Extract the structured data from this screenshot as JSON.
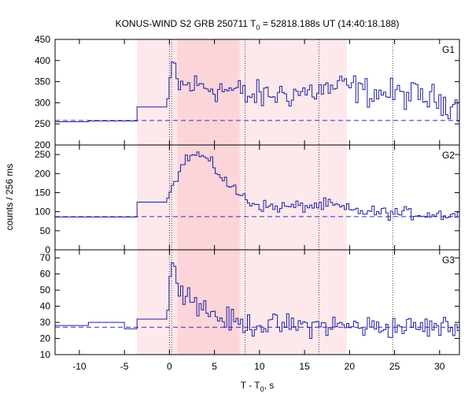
{
  "chart_data": {
    "type": "line",
    "title": {
      "prefix": "KONUS-WIND S2 GRB 250711 T",
      "sub": "0",
      "suffix": " = 52818.188s UT (14:40:18.188)"
    },
    "xlabel": {
      "prefix": "T - T",
      "sub": "0",
      "suffix": ", s"
    },
    "ylabel": "counts / 256 ms",
    "xlim": [
      -12.7,
      32.2
    ],
    "x_ticks": [
      -10,
      -5,
      0,
      5,
      10,
      15,
      20,
      25,
      30
    ],
    "shaded_intervals": [
      {
        "from": -3.6,
        "to": 19.7,
        "color": "#fde9ec"
      },
      {
        "from": 0.9,
        "to": 7.8,
        "color": "#fcd5da"
      }
    ],
    "vertical_markers": [
      0.0,
      0.25,
      8.4,
      16.6,
      24.8
    ],
    "colors": {
      "data": "#1e1ea0",
      "background": "#2b2bcf",
      "marker": "#444444"
    },
    "panels": [
      {
        "name": "G1",
        "ylim": [
          200,
          450
        ],
        "y_ticks": [
          200,
          250,
          300,
          350,
          400,
          450
        ],
        "background_level": 258,
        "noise": 17,
        "steps": [
          [
            -12.7,
            255
          ],
          [
            -9.0,
            257
          ],
          [
            -3.6,
            290
          ]
        ],
        "profile": [
          [
            -0.3,
            290
          ],
          [
            0.0,
            335
          ],
          [
            0.25,
            390
          ],
          [
            0.6,
            380
          ],
          [
            1.0,
            340
          ],
          [
            3.5,
            340
          ],
          [
            8.0,
            325
          ],
          [
            8.5,
            315
          ],
          [
            11,
            318
          ],
          [
            15,
            325
          ],
          [
            17,
            330
          ],
          [
            19.7,
            340
          ],
          [
            22,
            325
          ],
          [
            27,
            318
          ],
          [
            30,
            305
          ],
          [
            32.2,
            295
          ]
        ]
      },
      {
        "name": "G2",
        "ylim": [
          0,
          275
        ],
        "y_ticks": [
          0,
          50,
          100,
          150,
          200,
          250
        ],
        "background_level": 87,
        "noise": 8,
        "steps": [
          [
            -12.7,
            86
          ],
          [
            -9.0,
            86
          ],
          [
            -3.6,
            125
          ]
        ],
        "profile": [
          [
            -0.3,
            125
          ],
          [
            0.0,
            145
          ],
          [
            0.3,
            175
          ],
          [
            1.0,
            200
          ],
          [
            2.0,
            245
          ],
          [
            3.5,
            250
          ],
          [
            5.0,
            215
          ],
          [
            7.0,
            160
          ],
          [
            9.0,
            125
          ],
          [
            11.0,
            112
          ],
          [
            14.0,
            113
          ],
          [
            18.0,
            118
          ],
          [
            20.0,
            103
          ],
          [
            24.0,
            97
          ],
          [
            28.0,
            94
          ],
          [
            32.2,
            92
          ]
        ]
      },
      {
        "name": "G3",
        "ylim": [
          10,
          75
        ],
        "y_ticks": [
          10,
          20,
          30,
          40,
          50,
          60,
          70
        ],
        "background_level": 27,
        "noise": 3.5,
        "steps": [
          [
            -12.7,
            28
          ],
          [
            -9.0,
            30
          ],
          [
            -5.0,
            26
          ],
          [
            -3.6,
            32
          ]
        ],
        "profile": [
          [
            -0.3,
            32
          ],
          [
            0.0,
            47
          ],
          [
            0.15,
            68
          ],
          [
            0.5,
            60
          ],
          [
            1.0,
            56
          ],
          [
            2.0,
            48
          ],
          [
            3.5,
            40
          ],
          [
            5.5,
            33
          ],
          [
            8.0,
            29
          ],
          [
            12.0,
            28
          ],
          [
            18.0,
            28
          ],
          [
            24.0,
            27
          ],
          [
            28.0,
            27
          ],
          [
            32.2,
            27
          ]
        ]
      }
    ]
  }
}
